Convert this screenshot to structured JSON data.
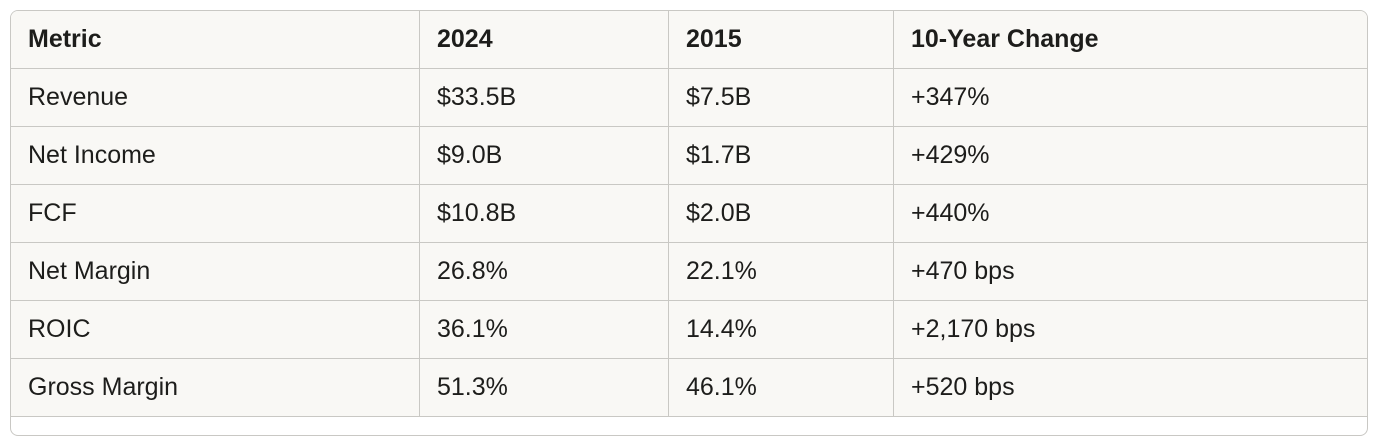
{
  "table": {
    "header": [
      "Metric",
      "2024",
      "2015",
      "10-Year Change"
    ],
    "rows": [
      [
        "Revenue",
        "$33.5B",
        "$7.5B",
        "+347%"
      ],
      [
        "Net Income",
        "$9.0B",
        "$1.7B",
        "+429%"
      ],
      [
        "FCF",
        "$10.8B",
        "$2.0B",
        "+440%"
      ],
      [
        "Net Margin",
        "26.8%",
        "22.1%",
        "+470 bps"
      ],
      [
        "ROIC",
        "36.1%",
        "14.4%",
        "+2,170 bps"
      ],
      [
        "Gross Margin",
        "51.3%",
        "46.1%",
        "+520 bps"
      ]
    ]
  }
}
